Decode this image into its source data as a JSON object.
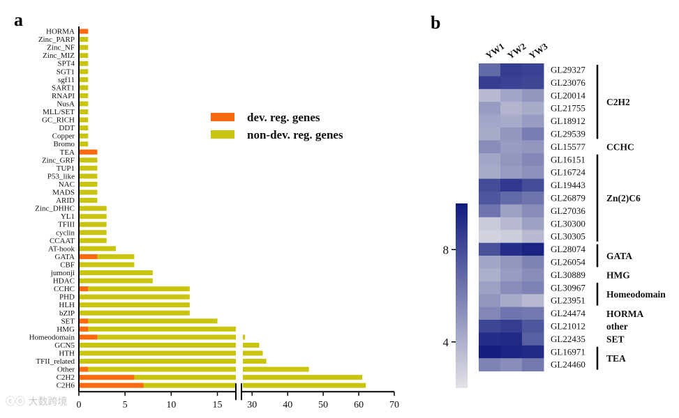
{
  "panel_a": {
    "letter": "a"
  },
  "panel_b": {
    "letter": "b"
  },
  "watermark": "ⓒⓞ 大数跨境",
  "colors": {
    "dev": "#FF6A0E",
    "nondev": "#C9C40E",
    "axis": "#000000",
    "heat_low": "#D7D7DE",
    "heat_high": "#0F1A7E"
  },
  "chart_data": [
    {
      "type": "bar",
      "orientation": "horizontal",
      "broken_axis": {
        "break_from": 17,
        "break_to": 27
      },
      "xlim": [
        0,
        70
      ],
      "xticks": [
        0,
        5,
        10,
        15,
        30,
        40,
        50,
        60,
        70
      ],
      "xtick_labels": [
        "0",
        "5",
        "10",
        "15",
        "30",
        "40",
        "50",
        "60",
        "70"
      ],
      "legend": {
        "position": "center-right",
        "entries": [
          "dev. reg. genes",
          "non-dev. reg. genes"
        ]
      },
      "categories": [
        "HORMA",
        "Zinc_PARP",
        "Zinc_NF",
        "Zinc_MIZ",
        "SPT4",
        "SGT1",
        "sgf11",
        "SART1",
        "RNAPI",
        "NusA",
        "MLL/SET",
        "GC_RICH",
        "DDT",
        "Copper",
        "Bromo",
        "TEA",
        "Zinc_GRF",
        "TUP1",
        "P53_like",
        "NAC",
        "MADS",
        "ARID",
        "Zinc_DHHC",
        "YL1",
        "TFIII",
        "cyclin",
        "CCAAT",
        "AT-hook",
        "GATA",
        "CBF",
        "jumonji",
        "HDAC",
        "CCHC",
        "PHD",
        "HLH",
        "bZIP",
        "SET",
        "HMG",
        "Homeodomain",
        "GCN5",
        "HTH",
        "TFII_related",
        "Other",
        "C2H2",
        "C2H6"
      ],
      "series": [
        {
          "name": "dev. reg. genes",
          "values": [
            1,
            0,
            0,
            0,
            0,
            0,
            0,
            0,
            0,
            0,
            0,
            0,
            0,
            0,
            0,
            2,
            0,
            0,
            0,
            0,
            0,
            0,
            0,
            0,
            0,
            0,
            0,
            0,
            2,
            0,
            0,
            0,
            1,
            0,
            0,
            0,
            1,
            1,
            2,
            0,
            0,
            0,
            1,
            6,
            7
          ]
        },
        {
          "name": "non-dev. reg. genes",
          "values": [
            1,
            1,
            1,
            1,
            1,
            1,
            1,
            1,
            1,
            1,
            1,
            1,
            1,
            1,
            1,
            2,
            2,
            2,
            2,
            2,
            2,
            2,
            3,
            3,
            3,
            3,
            3,
            4,
            6,
            6,
            8,
            8,
            12,
            12,
            12,
            12,
            15,
            18,
            28,
            32,
            33,
            34,
            46,
            61,
            62
          ]
        }
      ]
    },
    {
      "type": "heatmap",
      "columns": [
        "YW1",
        "YW2",
        "YW3"
      ],
      "rows": [
        "GL29327",
        "GL23076",
        "GL20014",
        "GL21755",
        "GL18912",
        "GL29539",
        "GL15577",
        "GL16151",
        "GL16724",
        "GL19443",
        "GL26879",
        "GL27036",
        "GL30300",
        "GL30305",
        "GL28074",
        "GL26054",
        "GL30889",
        "GL30967",
        "GL23951",
        "GL24474",
        "GL21012",
        "GL22435",
        "GL16971",
        "GL24460"
      ],
      "values": [
        [
          6.8,
          8.6,
          8.4
        ],
        [
          8.6,
          8.4,
          8.2
        ],
        [
          3.6,
          4.4,
          5.0
        ],
        [
          4.8,
          3.8,
          4.2
        ],
        [
          4.4,
          4.2,
          4.8
        ],
        [
          4.2,
          5.0,
          6.0
        ],
        [
          5.4,
          4.8,
          5.0
        ],
        [
          4.4,
          5.0,
          5.6
        ],
        [
          4.2,
          4.8,
          5.2
        ],
        [
          8.0,
          8.8,
          8.0
        ],
        [
          7.6,
          6.8,
          6.4
        ],
        [
          6.4,
          4.6,
          5.4
        ],
        [
          3.0,
          3.6,
          4.6
        ],
        [
          2.6,
          2.8,
          3.6
        ],
        [
          7.8,
          9.2,
          9.6
        ],
        [
          4.4,
          5.0,
          5.8
        ],
        [
          4.0,
          4.8,
          5.4
        ],
        [
          4.6,
          5.4,
          5.8
        ],
        [
          5.0,
          4.2,
          3.6
        ],
        [
          5.6,
          6.4,
          6.2
        ],
        [
          8.2,
          8.6,
          7.6
        ],
        [
          9.2,
          9.4,
          7.2
        ],
        [
          9.8,
          9.6,
          9.4
        ],
        [
          5.8,
          5.4,
          6.2
        ]
      ],
      "colorbar": {
        "min": 2,
        "max": 10,
        "tick_labels": [
          "8",
          "4"
        ],
        "ticks": [
          8,
          4
        ]
      },
      "groups": [
        {
          "label": "C2H2",
          "from": 0,
          "to": 5
        },
        {
          "label": "CCHC",
          "from": 6,
          "to": 6
        },
        {
          "label": "Zn(2)C6",
          "from": 7,
          "to": 13
        },
        {
          "label": "GATA",
          "from": 14,
          "to": 15
        },
        {
          "label": "HMG",
          "from": 16,
          "to": 16
        },
        {
          "label": "Homeodomain",
          "from": 17,
          "to": 18
        },
        {
          "label": "HORMA",
          "from": 19,
          "to": 19
        },
        {
          "label": "other",
          "from": 20,
          "to": 20
        },
        {
          "label": "SET",
          "from": 21,
          "to": 21
        },
        {
          "label": "TEA",
          "from": 22,
          "to": 23
        }
      ],
      "group_bars": [
        {
          "from": 0,
          "to": 5
        },
        {
          "from": 7,
          "to": 13
        },
        {
          "from": 14,
          "to": 15
        },
        {
          "from": 17,
          "to": 18
        },
        {
          "from": 22,
          "to": 23
        }
      ]
    }
  ]
}
